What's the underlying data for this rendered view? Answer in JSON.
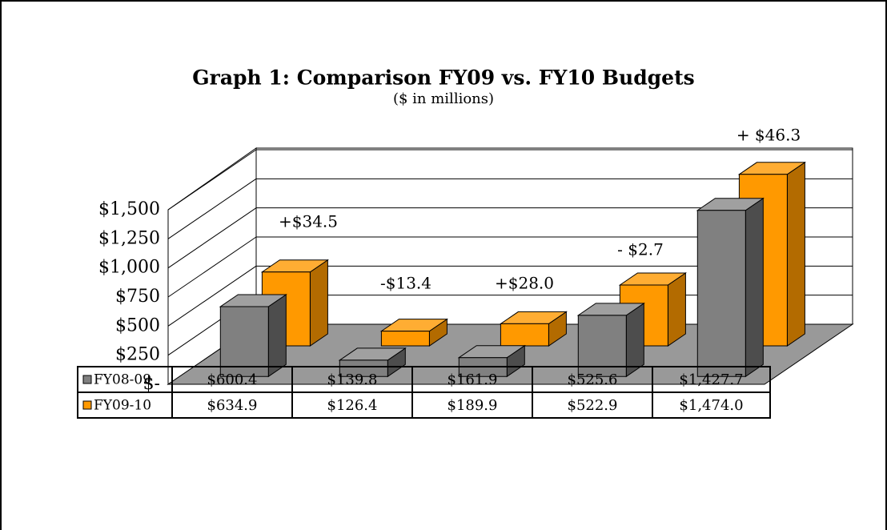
{
  "chart_data": {
    "type": "bar3d",
    "title": "Graph 1:  Comparison FY09 vs. FY10 Budgets",
    "subtitle": "($ in millions)",
    "series": [
      {
        "name": "FY08-09",
        "color": "#808080",
        "values": [
          600.4,
          139.8,
          161.9,
          525.6,
          1427.7
        ],
        "value_labels": [
          "$600.4",
          "$139.8",
          "$161.9",
          "$525.6",
          "$1,427.7"
        ]
      },
      {
        "name": "FY09-10",
        "color": "#ff9900",
        "values": [
          634.9,
          126.4,
          189.9,
          522.9,
          1474.0
        ],
        "value_labels": [
          "$634.9",
          "$126.4",
          "$189.9",
          "$522.9",
          "$1,474.0"
        ]
      }
    ],
    "annotations": [
      "+$34.5",
      "-$13.4",
      "+$28.0",
      "-  $2.7",
      "+ $46.3"
    ],
    "ylim": [
      0,
      1500
    ],
    "yticks": [
      {
        "value": 0,
        "label": "$-"
      },
      {
        "value": 250,
        "label": "$250"
      },
      {
        "value": 500,
        "label": "$500"
      },
      {
        "value": 750,
        "label": "$750"
      },
      {
        "value": 1000,
        "label": "$1,000"
      },
      {
        "value": 1250,
        "label": "$1,250"
      },
      {
        "value": 1500,
        "label": "$1,500"
      }
    ],
    "grid": true
  }
}
